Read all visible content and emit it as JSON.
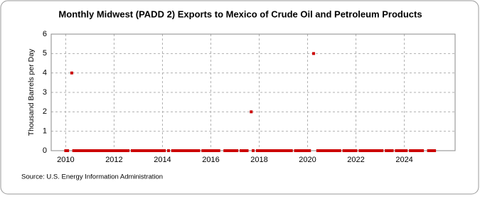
{
  "chart_data": {
    "type": "scatter",
    "title": "Monthly Midwest (PADD 2) Exports to Mexico of Crude Oil and Petroleum Products",
    "y_label": "Thousand Barrels per Day",
    "source": "Source: U.S. Energy Information Administration",
    "color": "#cc0000",
    "grid": true,
    "xlim": [
      2009.4,
      2026.1
    ],
    "xticks": [
      2010,
      2012,
      2014,
      2016,
      2018,
      2020,
      2022,
      2024
    ],
    "ylim": [
      0,
      6
    ],
    "yticks": [
      0,
      1,
      2,
      3,
      4,
      5,
      6
    ],
    "x": [
      2010.0,
      2010.08,
      2010.17,
      2010.25,
      2010.33,
      2010.42,
      2010.5,
      2010.58,
      2010.67,
      2010.75,
      2010.83,
      2010.92,
      2011.0,
      2011.08,
      2011.17,
      2011.25,
      2011.33,
      2011.42,
      2011.5,
      2011.58,
      2011.67,
      2011.75,
      2011.83,
      2011.92,
      2012.0,
      2012.08,
      2012.17,
      2012.25,
      2012.33,
      2012.42,
      2012.5,
      2012.58,
      2012.67,
      2012.75,
      2012.83,
      2012.92,
      2013.0,
      2013.08,
      2013.17,
      2013.25,
      2013.33,
      2013.42,
      2013.5,
      2013.58,
      2013.67,
      2013.75,
      2013.83,
      2013.92,
      2014.0,
      2014.08,
      2014.17,
      2014.25,
      2014.33,
      2014.42,
      2014.5,
      2014.58,
      2014.67,
      2014.75,
      2014.83,
      2014.92,
      2015.0,
      2015.08,
      2015.17,
      2015.25,
      2015.33,
      2015.42,
      2015.5,
      2015.58,
      2015.67,
      2015.75,
      2015.83,
      2015.92,
      2016.0,
      2016.08,
      2016.17,
      2016.25,
      2016.33,
      2016.42,
      2016.5,
      2016.58,
      2016.67,
      2016.75,
      2016.83,
      2016.92,
      2017.0,
      2017.08,
      2017.17,
      2017.25,
      2017.33,
      2017.42,
      2017.5,
      2017.58,
      2017.67,
      2017.75,
      2017.83,
      2017.92,
      2018.0,
      2018.08,
      2018.17,
      2018.25,
      2018.33,
      2018.42,
      2018.5,
      2018.58,
      2018.67,
      2018.75,
      2018.83,
      2018.92,
      2019.0,
      2019.08,
      2019.17,
      2019.25,
      2019.33,
      2019.42,
      2019.5,
      2019.58,
      2019.67,
      2019.75,
      2019.83,
      2019.92,
      2020.0,
      2020.08,
      2020.17,
      2020.25,
      2020.33,
      2020.42,
      2020.5,
      2020.58,
      2020.67,
      2020.75,
      2020.83,
      2020.92,
      2021.0,
      2021.08,
      2021.17,
      2021.25,
      2021.33,
      2021.42,
      2021.5,
      2021.58,
      2021.67,
      2021.75,
      2021.83,
      2021.92,
      2022.0,
      2022.08,
      2022.17,
      2022.25,
      2022.33,
      2022.42,
      2022.5,
      2022.58,
      2022.67,
      2022.75,
      2022.83,
      2022.92,
      2023.0,
      2023.08,
      2023.17,
      2023.25,
      2023.33,
      2023.42,
      2023.5,
      2023.58,
      2023.67,
      2023.75,
      2023.83,
      2023.92,
      2024.0,
      2024.08,
      2024.17,
      2024.25,
      2024.33,
      2024.42,
      2024.5,
      2024.58,
      2024.67,
      2024.75,
      2024.83,
      2024.92,
      2025.0,
      2025.08,
      2025.17,
      2025.25
    ],
    "values": [
      0,
      0,
      null,
      4,
      0,
      0,
      0,
      0,
      0,
      0,
      0,
      0,
      0,
      0,
      0,
      0,
      0,
      0,
      0,
      0,
      0,
      0,
      0,
      0,
      0,
      0,
      0,
      0,
      0,
      0,
      0,
      0,
      null,
      0,
      0,
      0,
      0,
      0,
      0,
      0,
      0,
      0,
      0,
      0,
      0,
      0,
      0,
      0,
      0,
      0,
      null,
      0,
      null,
      0,
      0,
      0,
      0,
      0,
      0,
      0,
      0,
      0,
      0,
      0,
      0,
      0,
      0,
      null,
      0,
      0,
      0,
      0,
      0,
      0,
      0,
      0,
      0,
      null,
      null,
      0,
      0,
      0,
      0,
      0,
      0,
      0,
      null,
      0,
      0,
      0,
      0,
      null,
      2,
      0,
      null,
      0,
      0,
      0,
      0,
      0,
      0,
      0,
      0,
      0,
      0,
      0,
      0,
      0,
      0,
      0,
      0,
      0,
      0,
      null,
      0,
      0,
      0,
      0,
      0,
      0,
      0,
      0,
      null,
      5,
      null,
      0,
      0,
      0,
      0,
      0,
      0,
      0,
      0,
      0,
      0,
      0,
      0,
      null,
      0,
      0,
      0,
      0,
      0,
      0,
      0,
      null,
      0,
      0,
      0,
      0,
      0,
      0,
      0,
      0,
      0,
      0,
      0,
      0,
      null,
      0,
      0,
      0,
      0,
      null,
      0,
      0,
      0,
      0,
      0,
      0,
      null,
      0,
      0,
      0,
      0,
      0,
      0,
      0,
      null,
      null,
      0,
      0,
      0,
      0
    ]
  }
}
